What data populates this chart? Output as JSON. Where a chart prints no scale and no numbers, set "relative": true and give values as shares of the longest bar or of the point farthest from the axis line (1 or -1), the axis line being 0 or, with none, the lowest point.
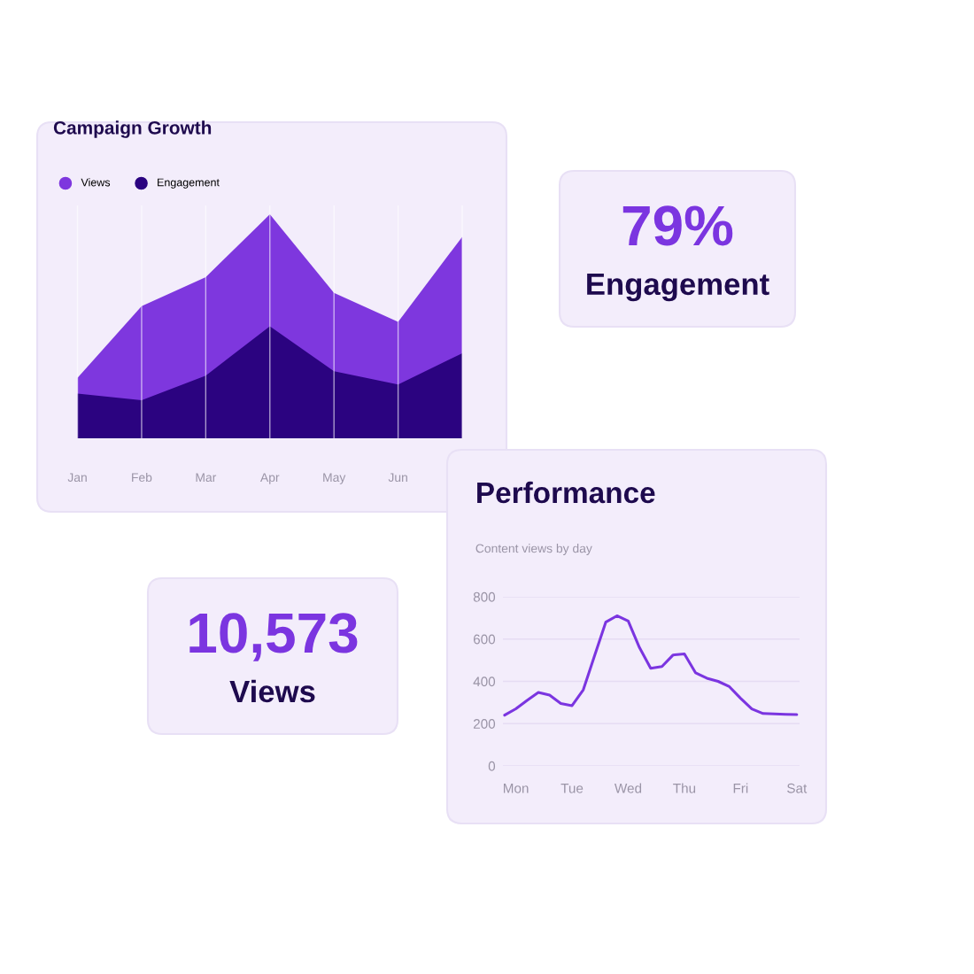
{
  "chart_data": [
    {
      "type": "area",
      "title": "Campaign Growth",
      "relative": true,
      "categories": [
        "Jan",
        "Feb",
        "Mar",
        "Apr",
        "May",
        "Jun",
        null
      ],
      "grid": "x",
      "legend": "top left",
      "series": [
        {
          "name": "Views",
          "color": "#7e37de",
          "values": [
            0.27,
            0.59,
            0.72,
            1.0,
            0.65,
            0.52,
            0.9
          ]
        },
        {
          "name": "Engagement",
          "color": "#2b0380",
          "values": [
            0.2,
            0.17,
            0.28,
            0.5,
            0.3,
            0.24,
            0.38
          ]
        }
      ]
    },
    {
      "type": "other",
      "title": "79%",
      "subtitle": "Engagement"
    },
    {
      "type": "other",
      "title": "10,573",
      "subtitle": "Views"
    },
    {
      "type": "line",
      "title": "Performance",
      "subtitle": "Content views by day",
      "grid": "y",
      "marker": "none",
      "line_style": "solid",
      "categories": [
        null,
        "Mon",
        null,
        null,
        null,
        null,
        "Tue",
        null,
        null,
        null,
        null,
        "Wed",
        null,
        null,
        null,
        null,
        "Thu",
        null,
        null,
        null,
        null,
        "Fri",
        null,
        null,
        null,
        null,
        "Sat"
      ],
      "ylim": [
        0,
        800
      ],
      "yticks": [
        0,
        200,
        400,
        600,
        800
      ],
      "series": [
        {
          "color": "#7b35e0",
          "values": [
            240,
            270,
            310,
            348,
            335,
            295,
            285,
            360,
            520,
            680,
            710,
            685,
            560,
            462,
            470,
            525,
            530,
            440,
            415,
            400,
            375,
            320,
            270,
            248,
            246,
            244,
            243
          ]
        }
      ]
    }
  ]
}
